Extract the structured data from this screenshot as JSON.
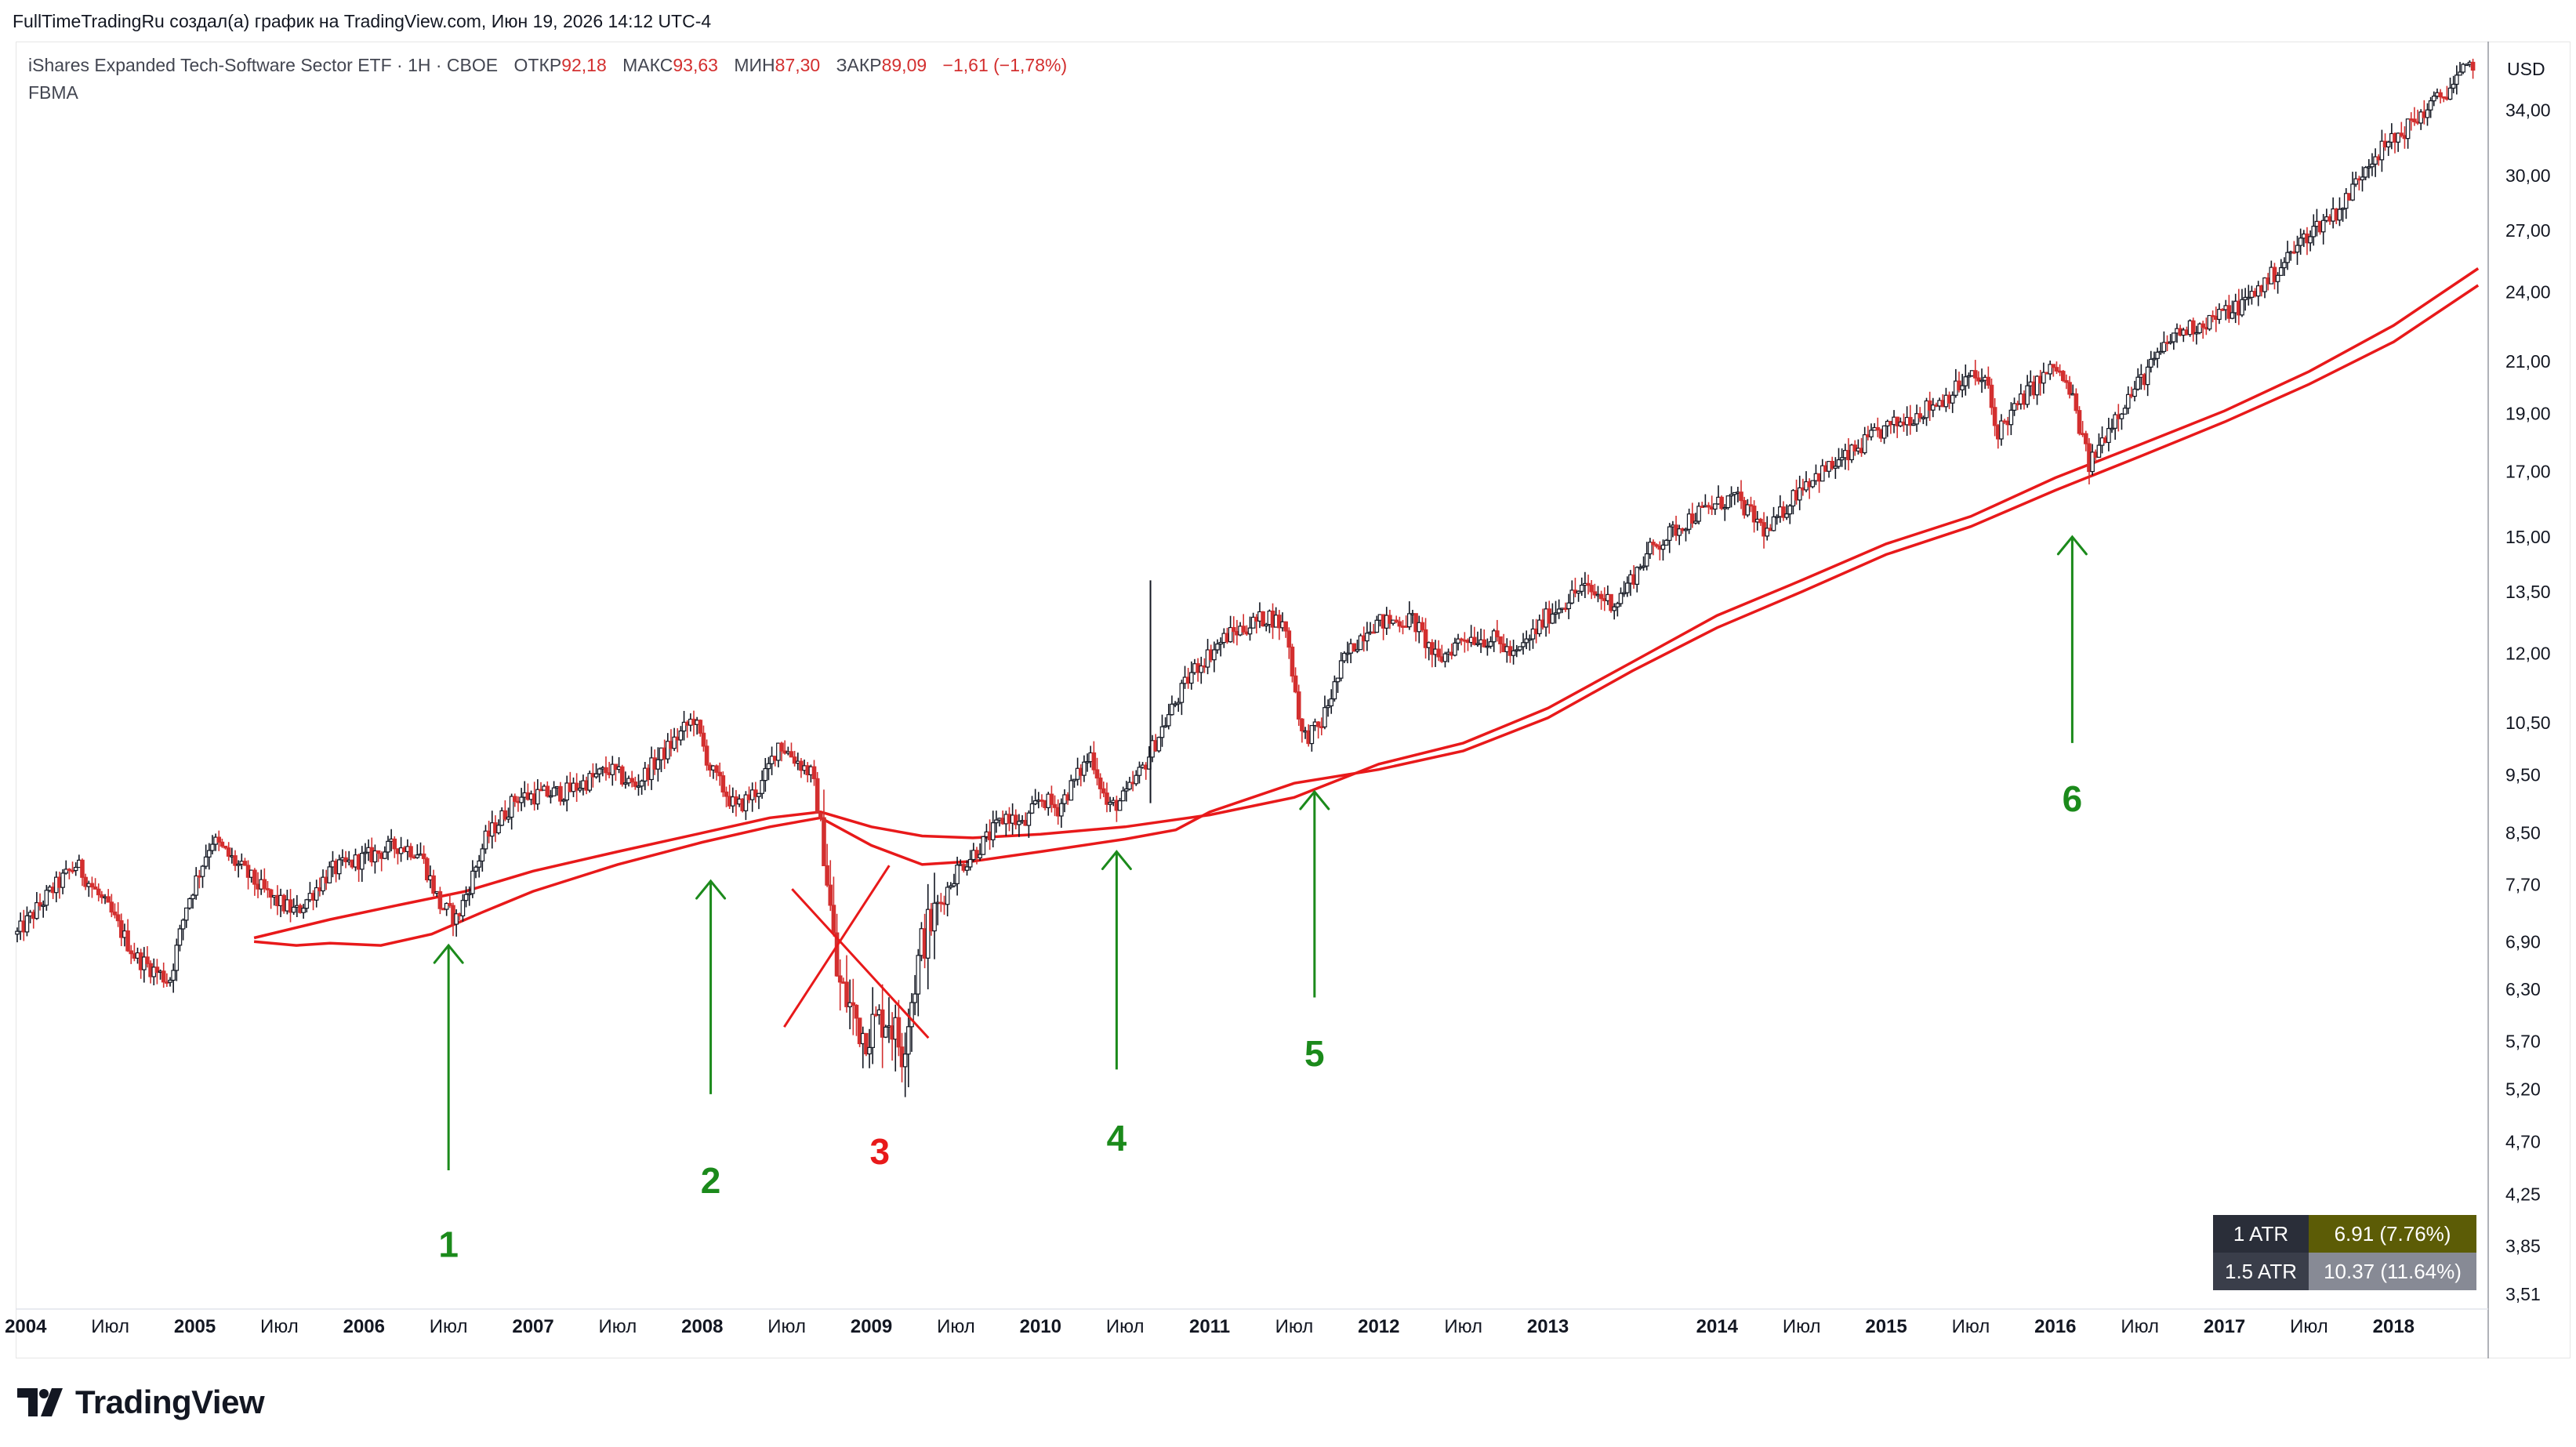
{
  "header": {
    "text": "FullTimeTradingRu создал(а) график на TradingView.com, Июн 19, 2026 14:12 UTC-4"
  },
  "legend": {
    "symbol": "iShares Expanded Tech-Software Sector ETF · 1Н · CBOE",
    "open_label": "ОТКР",
    "open": "92,18",
    "high_label": "МАКС",
    "high": "93,63",
    "low_label": "МИН",
    "low": "87,30",
    "close_label": "ЗАКР",
    "close": "89,09",
    "change": "−1,61 (−1,78%)",
    "indicator": "FBMA"
  },
  "axis": {
    "currency": "USD"
  },
  "atr": {
    "row1_label": "1 ATR",
    "row1_value": "6.91 (7.76%)",
    "row2_label": "1.5 ATR",
    "row2_value": "10.37 (11.64%)"
  },
  "branding": {
    "logo_text": "TradingView"
  },
  "colors": {
    "up": "#131722",
    "down": "#d32f2f",
    "ma": "#e8191a",
    "arrow": "#1b8a1b",
    "x_mark": "#e8191a"
  },
  "chart_data": {
    "type": "candlestick",
    "scale": "log",
    "y_ticks": [
      3.51,
      3.85,
      4.25,
      4.7,
      5.2,
      5.7,
      6.3,
      6.9,
      7.7,
      8.5,
      9.5,
      10.5,
      12.0,
      13.5,
      15.0,
      17.0,
      19.0,
      21.0,
      24.0,
      27.0,
      30.0,
      34.0
    ],
    "y_tick_labels": [
      "3,51",
      "3,85",
      "4,25",
      "4,70",
      "5,20",
      "5,70",
      "6,30",
      "6,90",
      "7,70",
      "8,50",
      "9,50",
      "10,50",
      "12,00",
      "13,50",
      "15,00",
      "17,00",
      "19,00",
      "21,00",
      "24,00",
      "27,00",
      "30,00",
      "34,00"
    ],
    "ylim": [
      3.4,
      38.5
    ],
    "x_range": [
      2003.95,
      2018.55
    ],
    "x_ticks": [
      {
        "t": 2004.0,
        "label": "2004",
        "bold": true
      },
      {
        "t": 2004.5,
        "label": "Июл",
        "bold": false
      },
      {
        "t": 2005.0,
        "label": "2005",
        "bold": true
      },
      {
        "t": 2005.5,
        "label": "Июл",
        "bold": false
      },
      {
        "t": 2006.0,
        "label": "2006",
        "bold": true
      },
      {
        "t": 2006.5,
        "label": "Июл",
        "bold": false
      },
      {
        "t": 2007.0,
        "label": "2007",
        "bold": true
      },
      {
        "t": 2007.5,
        "label": "Июл",
        "bold": false
      },
      {
        "t": 2008.0,
        "label": "2008",
        "bold": true
      },
      {
        "t": 2008.5,
        "label": "Июл",
        "bold": false
      },
      {
        "t": 2009.0,
        "label": "2009",
        "bold": true
      },
      {
        "t": 2009.5,
        "label": "Июл",
        "bold": false
      },
      {
        "t": 2010.0,
        "label": "2010",
        "bold": true
      },
      {
        "t": 2010.5,
        "label": "Июл",
        "bold": false
      },
      {
        "t": 2011.0,
        "label": "2011",
        "bold": true
      },
      {
        "t": 2011.5,
        "label": "Июл",
        "bold": false
      },
      {
        "t": 2012.0,
        "label": "2012",
        "bold": true
      },
      {
        "t": 2012.5,
        "label": "Июл",
        "bold": false
      },
      {
        "t": 2013.0,
        "label": "2013",
        "bold": true
      },
      {
        "t": 2014.0,
        "label": "2014",
        "bold": true
      },
      {
        "t": 2014.5,
        "label": "Июл",
        "bold": false
      },
      {
        "t": 2015.0,
        "label": "2015",
        "bold": true
      },
      {
        "t": 2015.5,
        "label": "Июл",
        "bold": false
      },
      {
        "t": 2016.0,
        "label": "2016",
        "bold": true
      },
      {
        "t": 2016.5,
        "label": "Июл",
        "bold": false
      },
      {
        "t": 2017.0,
        "label": "2017",
        "bold": true
      },
      {
        "t": 2017.5,
        "label": "Июл",
        "bold": false
      },
      {
        "t": 2018.0,
        "label": "2018",
        "bold": true
      }
    ],
    "price_path": [
      [
        2003.95,
        7.0
      ],
      [
        2004.15,
        7.6
      ],
      [
        2004.3,
        8.0
      ],
      [
        2004.5,
        7.3
      ],
      [
        2004.65,
        6.7
      ],
      [
        2004.85,
        6.4
      ],
      [
        2004.95,
        7.4
      ],
      [
        2005.1,
        8.4
      ],
      [
        2005.25,
        8.0
      ],
      [
        2005.45,
        7.5
      ],
      [
        2005.6,
        7.3
      ],
      [
        2005.8,
        7.9
      ],
      [
        2006.0,
        8.1
      ],
      [
        2006.2,
        8.3
      ],
      [
        2006.33,
        8.2
      ],
      [
        2006.45,
        7.4
      ],
      [
        2006.55,
        7.2
      ],
      [
        2006.72,
        8.4
      ],
      [
        2006.9,
        9.1
      ],
      [
        2007.2,
        9.2
      ],
      [
        2007.45,
        9.6
      ],
      [
        2007.6,
        9.3
      ],
      [
        2007.85,
        10.2
      ],
      [
        2007.95,
        10.6
      ],
      [
        2008.05,
        9.6
      ],
      [
        2008.2,
        8.9
      ],
      [
        2008.35,
        9.3
      ],
      [
        2008.45,
        10.1
      ],
      [
        2008.55,
        9.8
      ],
      [
        2008.65,
        9.5
      ],
      [
        2008.72,
        8.3
      ],
      [
        2008.8,
        6.4
      ],
      [
        2008.95,
        5.8
      ],
      [
        2009.1,
        6.0
      ],
      [
        2009.18,
        5.6
      ],
      [
        2009.3,
        6.9
      ],
      [
        2009.5,
        7.9
      ],
      [
        2009.65,
        8.3
      ],
      [
        2009.8,
        8.8
      ],
      [
        2009.9,
        8.6
      ],
      [
        2010.0,
        9.1
      ],
      [
        2010.1,
        8.9
      ],
      [
        2010.3,
        9.9
      ],
      [
        2010.4,
        8.9
      ],
      [
        2010.5,
        9.1
      ],
      [
        2010.6,
        9.6
      ],
      [
        2010.75,
        10.6
      ],
      [
        2010.9,
        11.6
      ],
      [
        2011.1,
        12.4
      ],
      [
        2011.35,
        12.9
      ],
      [
        2011.45,
        12.6
      ],
      [
        2011.55,
        10.2
      ],
      [
        2011.65,
        10.4
      ],
      [
        2011.8,
        11.9
      ],
      [
        2011.95,
        12.7
      ],
      [
        2012.2,
        12.8
      ],
      [
        2012.35,
        11.8
      ],
      [
        2012.5,
        12.4
      ],
      [
        2012.7,
        12.3
      ],
      [
        2012.8,
        11.9
      ],
      [
        2013.0,
        12.9
      ],
      [
        2013.2,
        13.6
      ],
      [
        2013.4,
        13.2
      ],
      [
        2013.6,
        14.6
      ],
      [
        2013.85,
        15.6
      ],
      [
        2014.1,
        16.2
      ],
      [
        2014.3,
        15.1
      ],
      [
        2014.5,
        16.6
      ],
      [
        2014.75,
        17.4
      ],
      [
        2014.95,
        18.3
      ],
      [
        2015.15,
        18.9
      ],
      [
        2015.35,
        19.6
      ],
      [
        2015.5,
        20.4
      ],
      [
        2015.6,
        20.1
      ],
      [
        2015.65,
        18.3
      ],
      [
        2015.85,
        19.9
      ],
      [
        2016.0,
        20.8
      ],
      [
        2016.1,
        19.6
      ],
      [
        2016.2,
        17.2
      ],
      [
        2016.35,
        18.9
      ],
      [
        2016.5,
        20.2
      ],
      [
        2016.7,
        22.1
      ],
      [
        2016.9,
        22.7
      ],
      [
        2017.1,
        23.4
      ],
      [
        2017.3,
        24.9
      ],
      [
        2017.5,
        26.9
      ],
      [
        2017.7,
        28.3
      ],
      [
        2017.85,
        30.9
      ],
      [
        2018.0,
        32.1
      ],
      [
        2018.15,
        33.6
      ],
      [
        2018.3,
        35.1
      ],
      [
        2018.48,
        37.4
      ]
    ],
    "ma_fast": [
      [
        2005.35,
        6.95
      ],
      [
        2005.8,
        7.2
      ],
      [
        2006.2,
        7.4
      ],
      [
        2006.6,
        7.6
      ],
      [
        2007.0,
        7.9
      ],
      [
        2007.5,
        8.2
      ],
      [
        2008.0,
        8.5
      ],
      [
        2008.4,
        8.75
      ],
      [
        2008.7,
        8.85
      ],
      [
        2009.0,
        8.6
      ],
      [
        2009.3,
        8.45
      ],
      [
        2009.6,
        8.42
      ],
      [
        2010.0,
        8.48
      ],
      [
        2010.5,
        8.6
      ],
      [
        2011.0,
        8.8
      ],
      [
        2011.5,
        9.1
      ],
      [
        2012.0,
        9.7
      ],
      [
        2012.5,
        10.1
      ],
      [
        2013.0,
        10.8
      ],
      [
        2013.5,
        11.8
      ],
      [
        2014.0,
        12.9
      ],
      [
        2014.5,
        13.8
      ],
      [
        2015.0,
        14.8
      ],
      [
        2015.5,
        15.6
      ],
      [
        2016.0,
        16.8
      ],
      [
        2016.5,
        17.9
      ],
      [
        2017.0,
        19.1
      ],
      [
        2017.5,
        20.6
      ],
      [
        2018.0,
        22.5
      ],
      [
        2018.5,
        25.1
      ]
    ],
    "ma_slow": [
      [
        2005.35,
        6.9
      ],
      [
        2005.6,
        6.85
      ],
      [
        2005.8,
        6.88
      ],
      [
        2006.1,
        6.85
      ],
      [
        2006.4,
        7.0
      ],
      [
        2006.7,
        7.3
      ],
      [
        2007.0,
        7.6
      ],
      [
        2007.5,
        8.0
      ],
      [
        2008.0,
        8.35
      ],
      [
        2008.4,
        8.6
      ],
      [
        2008.7,
        8.75
      ],
      [
        2009.0,
        8.3
      ],
      [
        2009.3,
        8.0
      ],
      [
        2009.6,
        8.05
      ],
      [
        2010.0,
        8.2
      ],
      [
        2010.5,
        8.4
      ],
      [
        2010.8,
        8.55
      ],
      [
        2011.0,
        8.85
      ],
      [
        2011.5,
        9.35
      ],
      [
        2012.0,
        9.6
      ],
      [
        2012.5,
        9.95
      ],
      [
        2013.0,
        10.6
      ],
      [
        2013.5,
        11.6
      ],
      [
        2014.0,
        12.6
      ],
      [
        2014.5,
        13.5
      ],
      [
        2015.0,
        14.5
      ],
      [
        2015.5,
        15.3
      ],
      [
        2016.0,
        16.4
      ],
      [
        2016.5,
        17.5
      ],
      [
        2017.0,
        18.7
      ],
      [
        2017.5,
        20.1
      ],
      [
        2018.0,
        21.8
      ],
      [
        2018.5,
        24.3
      ]
    ],
    "spike": {
      "t": 2010.65,
      "high": 13.8,
      "low": 9.0
    },
    "annotations": [
      {
        "label": "1",
        "t": 2006.5,
        "from_price": 4.45,
        "to_price": 6.85,
        "color": "green",
        "label_price": 3.85
      },
      {
        "label": "2",
        "t": 2008.05,
        "from_price": 5.15,
        "to_price": 7.75,
        "color": "green",
        "label_price": 4.35
      },
      {
        "label": "4",
        "t": 2010.45,
        "from_price": 5.4,
        "to_price": 8.2,
        "color": "green",
        "label_price": 4.72
      },
      {
        "label": "5",
        "t": 2011.62,
        "from_price": 6.2,
        "to_price": 9.2,
        "color": "green",
        "label_price": 5.55
      },
      {
        "label": "6",
        "t": 2016.1,
        "from_price": 10.1,
        "to_price": 15.0,
        "color": "green",
        "label_price": 9.05
      },
      {
        "label": "3",
        "t": 2009.05,
        "color": "red",
        "label_price": 4.6,
        "cross": true
      }
    ]
  }
}
